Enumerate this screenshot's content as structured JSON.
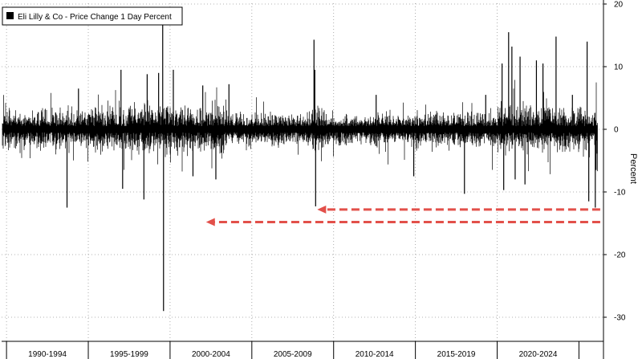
{
  "chart_data": {
    "type": "bar",
    "title": "",
    "legend": {
      "label": "Eli Lilly & Co - Price Change 1 Day Percent",
      "placement": "top-left",
      "swatch_color": "#000000"
    },
    "ylabel": "Percent",
    "xlabel": "",
    "ylim": [
      -32,
      20
    ],
    "y_ticks": [
      20,
      10,
      0,
      -10,
      -20,
      -30
    ],
    "y_tick_labels": [
      "20",
      "10",
      "0",
      "-10",
      "-20",
      "-30"
    ],
    "x_range_years": [
      1989.7,
      2026.5
    ],
    "x_period_labels": [
      {
        "label": "1990-1994",
        "start": 1990,
        "end": 1995
      },
      {
        "label": "1995-1999",
        "start": 1995,
        "end": 2000
      },
      {
        "label": "2000-2004",
        "start": 2000,
        "end": 2005
      },
      {
        "label": "2005-2009",
        "start": 2005,
        "end": 2010
      },
      {
        "label": "2010-2014",
        "start": 2010,
        "end": 2015
      },
      {
        "label": "2015-2019",
        "start": 2015,
        "end": 2020
      },
      {
        "label": "2020-2024",
        "start": 2020,
        "end": 2025
      }
    ],
    "grid": true,
    "series": [
      {
        "name": "Eli Lilly & Co - Price Change 1 Day Percent",
        "color": "#000000",
        "notable_moves": [
          {
            "x": 1993.7,
            "value": -12.5
          },
          {
            "x": 1994.4,
            "value": 6.5
          },
          {
            "x": 1997.0,
            "value": 9.5
          },
          {
            "x": 1997.1,
            "value": -9.5
          },
          {
            "x": 1998.4,
            "value": -11.2
          },
          {
            "x": 1998.6,
            "value": 8.8
          },
          {
            "x": 1999.3,
            "value": 9.0
          },
          {
            "x": 1999.55,
            "value": 19.0
          },
          {
            "x": 1999.6,
            "value": -29.0
          },
          {
            "x": 2000.2,
            "value": 9.5
          },
          {
            "x": 2001.4,
            "value": -7.5
          },
          {
            "x": 2002.0,
            "value": 7.0
          },
          {
            "x": 2002.8,
            "value": -8.0
          },
          {
            "x": 2003.6,
            "value": 7.2
          },
          {
            "x": 2008.8,
            "value": 14.3
          },
          {
            "x": 2008.85,
            "value": 9.5
          },
          {
            "x": 2008.9,
            "value": -12.3
          },
          {
            "x": 2012.6,
            "value": 5.5
          },
          {
            "x": 2014.9,
            "value": -7.5
          },
          {
            "x": 2018.0,
            "value": -10.3
          },
          {
            "x": 2019.3,
            "value": 5.5
          },
          {
            "x": 2020.3,
            "value": 10.5
          },
          {
            "x": 2020.4,
            "value": -9.7
          },
          {
            "x": 2020.7,
            "value": 15.5
          },
          {
            "x": 2020.9,
            "value": 13.2
          },
          {
            "x": 2021.1,
            "value": -8.0
          },
          {
            "x": 2021.4,
            "value": 11.6
          },
          {
            "x": 2021.7,
            "value": -8.8
          },
          {
            "x": 2022.4,
            "value": 11.0
          },
          {
            "x": 2022.8,
            "value": 10.5
          },
          {
            "x": 2023.6,
            "value": 14.8
          },
          {
            "x": 2024.6,
            "value": 5.5
          },
          {
            "x": 2025.5,
            "value": 14.0
          },
          {
            "x": 2025.6,
            "value": -11.5
          },
          {
            "x": 2026.0,
            "value": -12.5
          },
          {
            "x": 2026.05,
            "value": -6.5
          }
        ]
      }
    ],
    "annotations": [
      {
        "type": "dashed-arrow",
        "color": "#e2504a",
        "y_value": -12.8,
        "x_from": 2026.3,
        "x_to": 2009.0
      },
      {
        "type": "dashed-arrow",
        "color": "#e2504a",
        "y_value": -14.8,
        "x_from": 2026.3,
        "x_to": 2002.2
      }
    ]
  }
}
